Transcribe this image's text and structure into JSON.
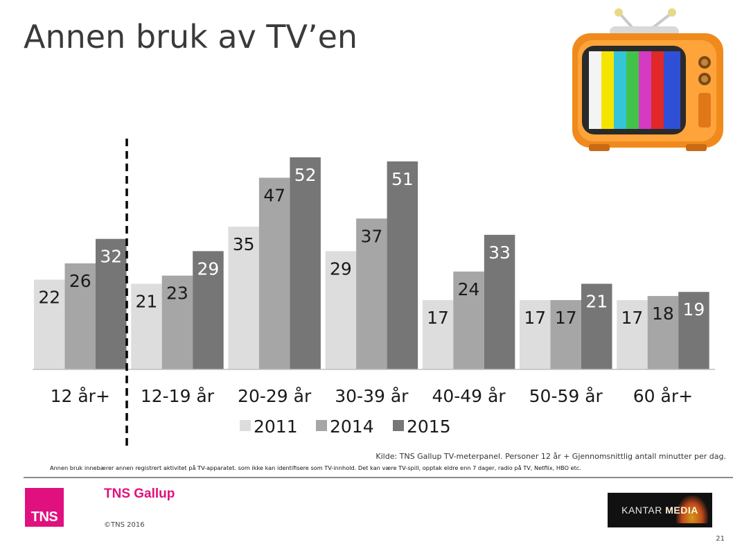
{
  "slide": {
    "title": "Annen bruk av TV’en",
    "source": "Kilde: TNS Gallup TV-meterpanel. Personer 12 år + Gjennomsnittlig antall minutter per dag.",
    "note": "Annen bruk innebærer annen registrert aktivitet på TV-apparatet. som ikke kan identifisere som TV-innhold. Det kan være TV-spill, opptak eldre enn 7 dager, radio på TV, Netflix, HBO etc.",
    "brand": "TNS Gallup",
    "logo_text": "TNS",
    "copyright": "©TNS 2016",
    "kantar_word1": "KANTAR",
    "kantar_word2": "MEDIA",
    "page_number": "21",
    "brand_color": "#e0107f"
  },
  "chart_data": {
    "type": "bar",
    "title": "",
    "xlabel": "",
    "ylabel": "",
    "categories": [
      "12 år+",
      "12-19 år",
      "20-29 år",
      "30-39 år",
      "40-49 år",
      "50-59 år",
      "60 år+"
    ],
    "series": [
      {
        "name": "2011",
        "color": "#dddddd",
        "values": [
          22,
          21,
          35,
          29,
          17,
          17,
          17
        ]
      },
      {
        "name": "2014",
        "color": "#a6a6a6",
        "values": [
          26,
          23,
          47,
          37,
          24,
          17,
          18
        ]
      },
      {
        "name": "2015",
        "color": "#767676",
        "values": [
          32,
          29,
          52,
          51,
          33,
          21,
          19
        ]
      }
    ],
    "ylim": [
      0,
      52
    ],
    "grid": false,
    "legend_position": "bottom",
    "separator_after_first_category": true
  }
}
